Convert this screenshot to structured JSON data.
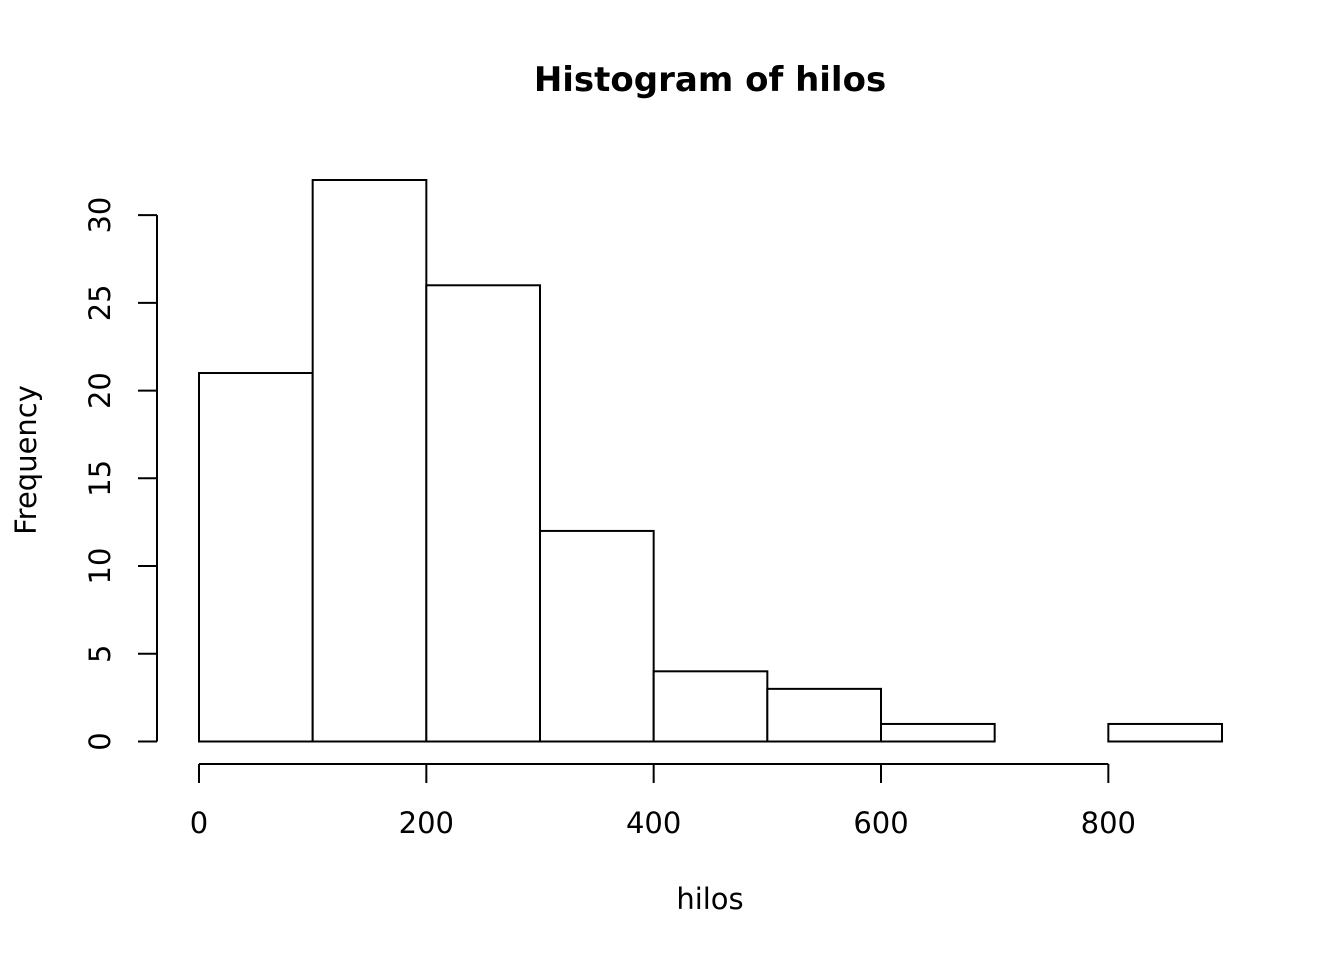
{
  "chart_data": {
    "type": "bar",
    "title": "Histogram of hilos",
    "xlabel": "hilos",
    "ylabel": "Frequency",
    "bins": [
      {
        "from": 0,
        "to": 100,
        "count": 21
      },
      {
        "from": 100,
        "to": 200,
        "count": 32
      },
      {
        "from": 200,
        "to": 300,
        "count": 26
      },
      {
        "from": 300,
        "to": 400,
        "count": 12
      },
      {
        "from": 400,
        "to": 500,
        "count": 4
      },
      {
        "from": 500,
        "to": 600,
        "count": 3
      },
      {
        "from": 600,
        "to": 700,
        "count": 1
      },
      {
        "from": 700,
        "to": 800,
        "count": 0
      },
      {
        "from": 800,
        "to": 900,
        "count": 1
      }
    ],
    "xlim": [
      0,
      900
    ],
    "ylim": [
      0,
      32
    ],
    "x_ticks": [
      0,
      200,
      400,
      600,
      800
    ],
    "y_ticks": [
      0,
      5,
      10,
      15,
      20,
      25,
      30
    ],
    "grid": false,
    "colors": {
      "bar_fill": "#ffffff",
      "bar_stroke": "#000000",
      "axis": "#000000"
    }
  }
}
